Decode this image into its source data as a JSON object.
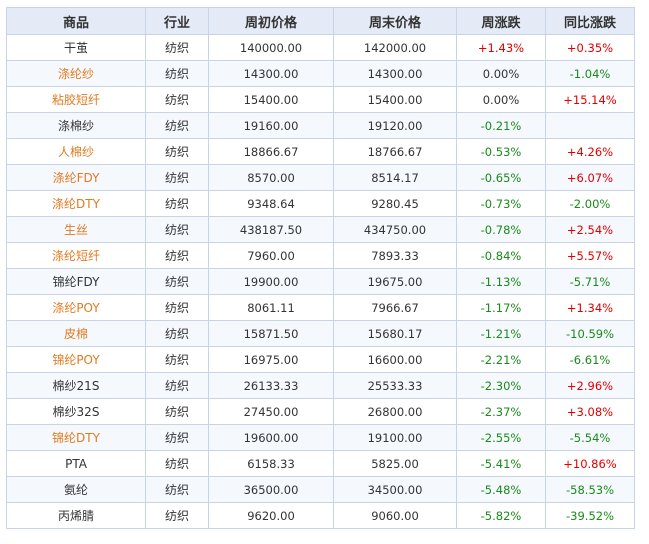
{
  "headers": [
    "商品",
    "行业",
    "周初价格",
    "周末价格",
    "周涨跌",
    "同比涨跌"
  ],
  "colors": {
    "link": "#e07b20",
    "up": "#e00000",
    "down": "#1a8a1a",
    "header_bg": "#e4ebf6",
    "border": "#c8d4e6"
  },
  "rows": [
    {
      "name": "干茧",
      "link": false,
      "industry": "纺织",
      "start": "140000.00",
      "end": "142000.00",
      "week": "+1.43%",
      "week_dir": "pos",
      "yoy": "+0.35%",
      "yoy_dir": "pos"
    },
    {
      "name": "涤纶纱",
      "link": true,
      "industry": "纺织",
      "start": "14300.00",
      "end": "14300.00",
      "week": "0.00%",
      "week_dir": "zero",
      "yoy": "-1.04%",
      "yoy_dir": "neg"
    },
    {
      "name": "粘胶短纤",
      "link": true,
      "industry": "纺织",
      "start": "15400.00",
      "end": "15400.00",
      "week": "0.00%",
      "week_dir": "zero",
      "yoy": "+15.14%",
      "yoy_dir": "pos"
    },
    {
      "name": "涤棉纱",
      "link": false,
      "industry": "纺织",
      "start": "19160.00",
      "end": "19120.00",
      "week": "-0.21%",
      "week_dir": "neg",
      "yoy": "",
      "yoy_dir": "zero"
    },
    {
      "name": "人棉纱",
      "link": true,
      "industry": "纺织",
      "start": "18866.67",
      "end": "18766.67",
      "week": "-0.53%",
      "week_dir": "neg",
      "yoy": "+4.26%",
      "yoy_dir": "pos"
    },
    {
      "name": "涤纶FDY",
      "link": true,
      "industry": "纺织",
      "start": "8570.00",
      "end": "8514.17",
      "week": "-0.65%",
      "week_dir": "neg",
      "yoy": "+6.07%",
      "yoy_dir": "pos"
    },
    {
      "name": "涤纶DTY",
      "link": true,
      "industry": "纺织",
      "start": "9348.64",
      "end": "9280.45",
      "week": "-0.73%",
      "week_dir": "neg",
      "yoy": "-2.00%",
      "yoy_dir": "neg"
    },
    {
      "name": "生丝",
      "link": true,
      "industry": "纺织",
      "start": "438187.50",
      "end": "434750.00",
      "week": "-0.78%",
      "week_dir": "neg",
      "yoy": "+2.54%",
      "yoy_dir": "pos"
    },
    {
      "name": "涤纶短纤",
      "link": true,
      "industry": "纺织",
      "start": "7960.00",
      "end": "7893.33",
      "week": "-0.84%",
      "week_dir": "neg",
      "yoy": "+5.57%",
      "yoy_dir": "pos"
    },
    {
      "name": "锦纶FDY",
      "link": false,
      "industry": "纺织",
      "start": "19900.00",
      "end": "19675.00",
      "week": "-1.13%",
      "week_dir": "neg",
      "yoy": "-5.71%",
      "yoy_dir": "neg"
    },
    {
      "name": "涤纶POY",
      "link": true,
      "industry": "纺织",
      "start": "8061.11",
      "end": "7966.67",
      "week": "-1.17%",
      "week_dir": "neg",
      "yoy": "+1.34%",
      "yoy_dir": "pos"
    },
    {
      "name": "皮棉",
      "link": true,
      "industry": "纺织",
      "start": "15871.50",
      "end": "15680.17",
      "week": "-1.21%",
      "week_dir": "neg",
      "yoy": "-10.59%",
      "yoy_dir": "neg"
    },
    {
      "name": "锦纶POY",
      "link": true,
      "industry": "纺织",
      "start": "16975.00",
      "end": "16600.00",
      "week": "-2.21%",
      "week_dir": "neg",
      "yoy": "-6.61%",
      "yoy_dir": "neg"
    },
    {
      "name": "棉纱21S",
      "link": false,
      "industry": "纺织",
      "start": "26133.33",
      "end": "25533.33",
      "week": "-2.30%",
      "week_dir": "neg",
      "yoy": "+2.96%",
      "yoy_dir": "pos"
    },
    {
      "name": "棉纱32S",
      "link": false,
      "industry": "纺织",
      "start": "27450.00",
      "end": "26800.00",
      "week": "-2.37%",
      "week_dir": "neg",
      "yoy": "+3.08%",
      "yoy_dir": "pos"
    },
    {
      "name": "锦纶DTY",
      "link": true,
      "industry": "纺织",
      "start": "19600.00",
      "end": "19100.00",
      "week": "-2.55%",
      "week_dir": "neg",
      "yoy": "-5.54%",
      "yoy_dir": "neg"
    },
    {
      "name": "PTA",
      "link": false,
      "industry": "纺织",
      "start": "6158.33",
      "end": "5825.00",
      "week": "-5.41%",
      "week_dir": "neg",
      "yoy": "+10.86%",
      "yoy_dir": "pos"
    },
    {
      "name": "氨纶",
      "link": false,
      "industry": "纺织",
      "start": "36500.00",
      "end": "34500.00",
      "week": "-5.48%",
      "week_dir": "neg",
      "yoy": "-58.53%",
      "yoy_dir": "neg"
    },
    {
      "name": "丙烯腈",
      "link": false,
      "industry": "纺织",
      "start": "9620.00",
      "end": "9060.00",
      "week": "-5.82%",
      "week_dir": "neg",
      "yoy": "-39.52%",
      "yoy_dir": "neg"
    }
  ]
}
